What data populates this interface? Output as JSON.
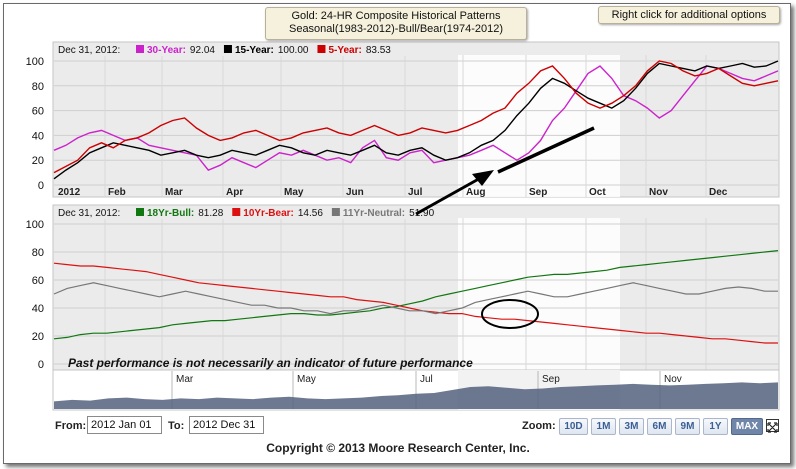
{
  "header": {
    "title_line1": "Gold: 24-HR Composite Historical Patterns",
    "title_line2": "Seasonal(1983-2012)-Bull/Bear(1974-2012)",
    "right_click_hint": "Right click for additional options"
  },
  "chart_data": [
    {
      "type": "line",
      "panel": "seasonal",
      "header_date": "Dec 31, 2012:",
      "x_tick_labels": [
        "2012",
        "Feb",
        "Mar",
        "Apr",
        "May",
        "Jun",
        "Jul",
        "Aug",
        "Sep",
        "Oct",
        "Nov",
        "Dec"
      ],
      "ylim": [
        0,
        100
      ],
      "y_ticks": [
        "0",
        "20",
        "40",
        "60",
        "80",
        "100"
      ],
      "grid": true,
      "highlight_range": [
        "Aug",
        "Oct"
      ],
      "series": [
        {
          "name": "30-Year:",
          "last_value": "92.04",
          "color": "#cc22cc",
          "values": [
            28,
            32,
            38,
            42,
            44,
            40,
            36,
            38,
            32,
            30,
            28,
            26,
            24,
            12,
            16,
            22,
            18,
            14,
            20,
            26,
            24,
            28,
            24,
            20,
            22,
            18,
            30,
            36,
            22,
            20,
            26,
            28,
            18,
            20,
            22,
            24,
            28,
            32,
            26,
            20,
            26,
            36,
            52,
            62,
            76,
            90,
            96,
            86,
            72,
            68,
            62,
            54,
            60,
            72,
            84,
            96,
            94,
            90,
            86,
            84,
            88,
            92
          ]
        },
        {
          "name": "15-Year:",
          "last_value": "100.00",
          "color": "#000000",
          "values": [
            5,
            12,
            18,
            26,
            30,
            34,
            32,
            30,
            28,
            24,
            26,
            28,
            24,
            22,
            24,
            28,
            26,
            24,
            28,
            32,
            30,
            26,
            24,
            28,
            26,
            24,
            28,
            32,
            26,
            24,
            28,
            30,
            24,
            20,
            22,
            26,
            32,
            36,
            44,
            56,
            66,
            78,
            86,
            82,
            76,
            70,
            66,
            62,
            68,
            78,
            90,
            98,
            96,
            94,
            92,
            96,
            94,
            96,
            98,
            95,
            96,
            100
          ]
        },
        {
          "name": "5-Year:",
          "last_value": "83.53",
          "color": "#cc0000",
          "values": [
            10,
            15,
            20,
            30,
            34,
            30,
            36,
            38,
            42,
            48,
            52,
            54,
            46,
            40,
            36,
            38,
            42,
            44,
            40,
            36,
            38,
            42,
            44,
            46,
            42,
            40,
            44,
            48,
            44,
            40,
            42,
            46,
            44,
            42,
            44,
            48,
            52,
            58,
            62,
            74,
            82,
            92,
            96,
            86,
            74,
            66,
            62,
            66,
            72,
            80,
            92,
            100,
            98,
            92,
            88,
            90,
            94,
            88,
            82,
            80,
            82,
            84
          ]
        }
      ]
    },
    {
      "type": "line",
      "panel": "bull_bear",
      "header_date": "Dec 31, 2012:",
      "ylim": [
        0,
        100
      ],
      "y_ticks": [
        "0",
        "20",
        "40",
        "60",
        "80",
        "100"
      ],
      "grid": true,
      "annotation": "Past performance is not necessarily an indicator of future performance",
      "series": [
        {
          "name": "18Yr-Bull:",
          "last_value": "81.28",
          "color": "#117711",
          "values": [
            18,
            19,
            21,
            22,
            22,
            23,
            24,
            25,
            26,
            28,
            29,
            30,
            31,
            31,
            32,
            33,
            34,
            35,
            36,
            36,
            35,
            35,
            36,
            37,
            38,
            40,
            41,
            43,
            45,
            48,
            50,
            52,
            54,
            56,
            58,
            60,
            62,
            63,
            64,
            64,
            65,
            66,
            67,
            69,
            70,
            71,
            72,
            73,
            74,
            75,
            76,
            77,
            78,
            79,
            80,
            81
          ]
        },
        {
          "name": "10Yr-Bear:",
          "last_value": "14.56",
          "color": "#dd1111",
          "values": [
            72,
            71,
            70,
            70,
            69,
            68,
            67,
            66,
            64,
            62,
            60,
            58,
            57,
            56,
            55,
            54,
            53,
            52,
            51,
            50,
            49,
            48,
            48,
            46,
            45,
            44,
            42,
            40,
            38,
            37,
            36,
            36,
            34,
            33,
            32,
            32,
            31,
            30,
            29,
            28,
            27,
            26,
            25,
            24,
            23,
            22,
            22,
            21,
            20,
            19,
            18,
            18,
            17,
            16,
            15,
            15
          ]
        },
        {
          "name": "11Yr-Neutral:",
          "last_value": "51.90",
          "color": "#777777",
          "values": [
            50,
            54,
            56,
            58,
            56,
            54,
            52,
            50,
            48,
            50,
            52,
            50,
            48,
            46,
            44,
            42,
            42,
            40,
            40,
            38,
            38,
            36,
            38,
            38,
            40,
            42,
            40,
            38,
            38,
            36,
            38,
            40,
            44,
            46,
            48,
            50,
            52,
            50,
            48,
            48,
            50,
            52,
            54,
            56,
            58,
            56,
            54,
            52,
            50,
            50,
            52,
            54,
            55,
            54,
            52,
            52
          ]
        }
      ]
    },
    {
      "type": "area",
      "panel": "navigator",
      "x_tick_labels": [
        "Mar",
        "May",
        "Jul",
        "Sep",
        "Nov"
      ],
      "values": [
        20,
        24,
        22,
        28,
        30,
        26,
        24,
        28,
        26,
        30,
        28,
        26,
        30,
        32,
        28,
        26,
        28,
        30,
        34,
        36,
        40,
        42,
        50,
        58,
        60,
        56,
        52,
        54,
        58,
        60,
        62,
        64,
        66,
        64,
        62,
        64,
        66,
        68,
        70,
        68,
        70
      ]
    }
  ],
  "date_range": {
    "from_label": "From:",
    "from_value": "2012 Jan 01",
    "to_label": "To:",
    "to_value": "2012 Dec 31"
  },
  "zoom": {
    "label": "Zoom:",
    "buttons": [
      "10D",
      "1M",
      "3M",
      "6M",
      "9M",
      "1Y",
      "MAX"
    ],
    "active": "MAX"
  },
  "copyright": "Copyright © 2013 Moore Research Center, Inc."
}
